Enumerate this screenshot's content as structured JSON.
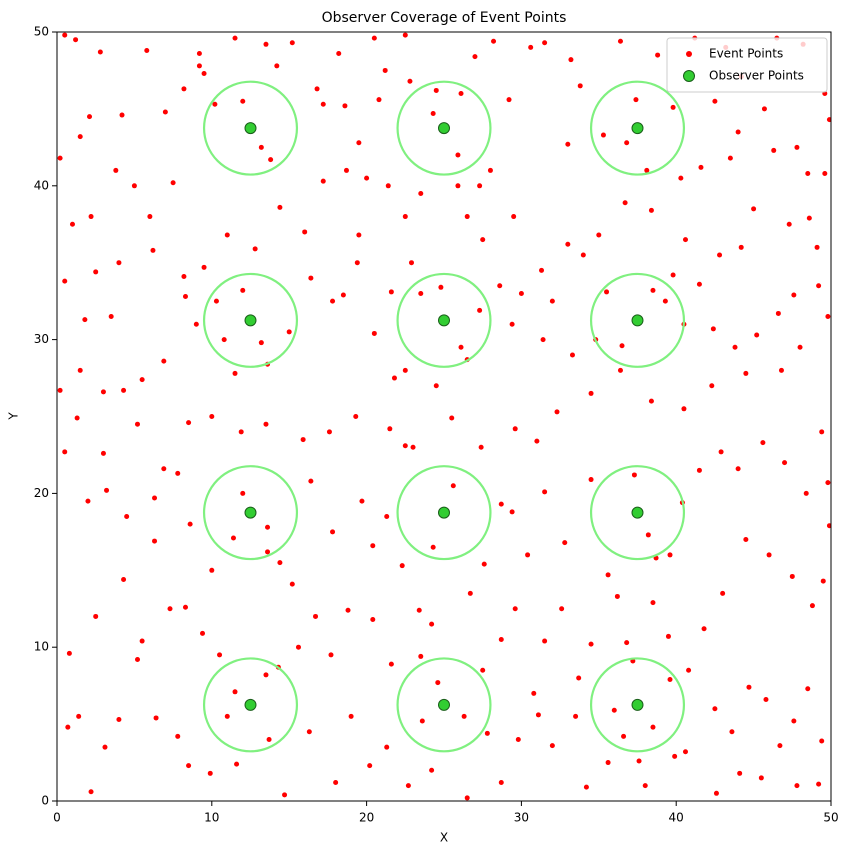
{
  "chart_data": {
    "type": "scatter",
    "title": "Observer Coverage of Event Points",
    "x_label": "X",
    "y_label": "Y",
    "xlim": [
      0,
      50
    ],
    "ylim": [
      0,
      50
    ],
    "xticks": [
      0,
      10,
      20,
      30,
      40,
      50
    ],
    "yticks": [
      0,
      10,
      20,
      30,
      40,
      50
    ],
    "grid": false,
    "legend": "upper right",
    "series": [
      {
        "name": "Event Points",
        "color": "#ff0000",
        "x": [
          0.2,
          0.5,
          1.2,
          2.8,
          4.2,
          2.1,
          1.5,
          5.8,
          7,
          8.2,
          9.2,
          9.5,
          10.2,
          11.5,
          13.5,
          14.2,
          15.2,
          16.8,
          17.2,
          18.2,
          18.6,
          19.5,
          20.5,
          20.8,
          21.2,
          22.5,
          22.8,
          24.5,
          26.1,
          27,
          28.2,
          29.2,
          30.6,
          31.5,
          33.2,
          33.8,
          35.3,
          36.4,
          37.4,
          38.8,
          39.8,
          41.2,
          42.5,
          43.2,
          44.2,
          45.7,
          46.5,
          48.2,
          49.6,
          49.9,
          47.8,
          46.3,
          44,
          43.5,
          41.6,
          40.3,
          48.5,
          49.6,
          45,
          47.3,
          48.6,
          49.1,
          44.2,
          42.8,
          40.6,
          39.8,
          38.4,
          36.7,
          35,
          34,
          33,
          31.3,
          30,
          29.5,
          27.5,
          26.5,
          28,
          25.9,
          23.5,
          22.5,
          21.4,
          20,
          18.7,
          17.2,
          16,
          14.4,
          12.8,
          11,
          9.5,
          8.2,
          7.5,
          6,
          5,
          3.8,
          2.2,
          1,
          0.5,
          2.5,
          4,
          6.2,
          3.5,
          1.8,
          0.2,
          1.5,
          3,
          4.3,
          5.5,
          6.9,
          8.3,
          9,
          10.3,
          11.5,
          13.6,
          15,
          16.4,
          17.8,
          18.5,
          19.4,
          20.5,
          21.6,
          22.9,
          23.5,
          21.8,
          22.5,
          24.5,
          26.5,
          27.3,
          28.6,
          29.4,
          31.4,
          32,
          33.3,
          34.8,
          35.5,
          39.3,
          40.5,
          41.5,
          42.4,
          43.8,
          45.2,
          46.6,
          47.6,
          49.2,
          49.8,
          48,
          46.8,
          44.5,
          42.3,
          40.5,
          38.4,
          36.4,
          34.5,
          32.3,
          31,
          29.6,
          27.4,
          25.5,
          23,
          21.5,
          19.3,
          17.6,
          15.9,
          13.5,
          11.9,
          10,
          8.5,
          6.9,
          5.2,
          3,
          1.3,
          0.5,
          2,
          3.2,
          4.5,
          6.3,
          7.8,
          8.6,
          10,
          11.4,
          13.6,
          14.4,
          15.2,
          16.4,
          17.8,
          19.7,
          20.4,
          21.3,
          22.5,
          22.3,
          23.4,
          24.2,
          26.7,
          27.6,
          28.7,
          29.4,
          30.4,
          31.5,
          32.8,
          34.5,
          35.6,
          36.2,
          38.7,
          39.6,
          40.4,
          41.5,
          42.9,
          44,
          45.6,
          47,
          48.4,
          49.4,
          49.8,
          49.9,
          49.5,
          48.8,
          47.5,
          46,
          44.5,
          43,
          41.8,
          40.8,
          39.6,
          42.5,
          43.6,
          44.7,
          45.8,
          46.7,
          47.6,
          48.5,
          49.4,
          49.2,
          47.8,
          45.5,
          44.1,
          42.6,
          40.6,
          38,
          36.6,
          35.6,
          34.2,
          33.5,
          32,
          31.1,
          30.8,
          29.8,
          28.7,
          27.8,
          26.5,
          24.2,
          22.7,
          21.3,
          20.2,
          19,
          18,
          16.3,
          14.7,
          13.7,
          11.6,
          9.9,
          8.5,
          7.8,
          6.4,
          5.2,
          4,
          3.1,
          2.2,
          1.4,
          0.7,
          0.8,
          2.5,
          4.3,
          5.5,
          6.3,
          7.3,
          8.3,
          9.4,
          10.5,
          11.5,
          14.3,
          15.6,
          16.7,
          17.7,
          18.8,
          20.4,
          21.6,
          23.5,
          24.6,
          27.5,
          28.7,
          29.6,
          31.5,
          32.6,
          33.7,
          34.5,
          36.8,
          38.5,
          39.5,
          13.2,
          12,
          13.8,
          24.3,
          25.9,
          36.8,
          38.1,
          12,
          13.2,
          24.8,
          26.1,
          36.5,
          38.5,
          12,
          13.6,
          24.3,
          25.6,
          37.3,
          38.2,
          11,
          13.5,
          23.6,
          26.3,
          36,
          37.6,
          38.5,
          37.2,
          39.9,
          10.8,
          9.2,
          19.5,
          33,
          27.3
        ],
        "y": [
          41.8,
          49.8,
          49.5,
          48.7,
          44.6,
          44.5,
          43.2,
          48.8,
          44.8,
          46.3,
          48.6,
          47.3,
          45.3,
          49.6,
          49.2,
          47.8,
          49.3,
          46.3,
          45.3,
          48.6,
          45.2,
          42.8,
          49.6,
          45.6,
          47.5,
          49.8,
          46.8,
          46.2,
          46,
          48.4,
          49.4,
          45.6,
          49,
          49.3,
          48.2,
          46.5,
          43.3,
          49.4,
          45.6,
          48.5,
          45.1,
          49.6,
          45.5,
          49,
          47.1,
          45,
          49.6,
          49.2,
          46,
          44.3,
          42.5,
          42.3,
          43.5,
          41.8,
          41.2,
          40.5,
          40.8,
          40.8,
          38.5,
          37.5,
          37.9,
          36,
          36,
          35.5,
          36.5,
          34.2,
          38.4,
          38.9,
          36.8,
          35.5,
          36.2,
          34.5,
          33,
          38,
          36.5,
          38,
          41,
          40,
          39.5,
          38,
          40,
          40.5,
          41,
          40.3,
          37,
          38.6,
          35.9,
          36.8,
          34.7,
          34.1,
          40.2,
          38,
          40,
          41,
          38,
          37.5,
          33.8,
          34.4,
          35,
          35.8,
          31.5,
          31.3,
          26.7,
          28,
          26.6,
          26.7,
          27.4,
          28.6,
          32.8,
          31,
          32.5,
          27.8,
          28.4,
          30.5,
          34,
          32.5,
          32.9,
          35,
          30.4,
          33.1,
          35,
          33,
          27.5,
          28,
          27,
          28.7,
          31.9,
          33.5,
          31,
          30,
          32.5,
          29,
          30,
          33.1,
          32.5,
          31,
          33.6,
          30.7,
          29.5,
          30.3,
          31.7,
          32.9,
          33.5,
          31.5,
          29.5,
          28,
          27.8,
          27,
          25.5,
          26,
          28,
          26.5,
          25.3,
          23.4,
          24.2,
          23,
          24.9,
          23,
          24.2,
          25,
          24,
          23.5,
          24.5,
          24,
          25,
          24.6,
          21.6,
          24.5,
          22.6,
          24.9,
          22.7,
          19.5,
          20.2,
          18.5,
          19.7,
          21.3,
          18,
          15,
          17.1,
          16.2,
          15.5,
          14.1,
          20.8,
          17.5,
          19.5,
          16.6,
          18.5,
          23.1,
          15.3,
          12.4,
          11.5,
          13.5,
          15.4,
          19.3,
          18.8,
          16,
          20.1,
          16.8,
          20.9,
          14.7,
          13.3,
          15.8,
          16,
          19.4,
          21.5,
          22.7,
          21.6,
          23.3,
          22,
          20,
          24,
          20.7,
          17.9,
          14.3,
          12.7,
          14.6,
          16,
          17,
          13.5,
          11.2,
          8.5,
          7.9,
          6,
          4.5,
          7.4,
          6.6,
          3.6,
          5.2,
          7.3,
          3.9,
          1.1,
          1,
          1.5,
          1.8,
          0.5,
          3.2,
          1,
          4.2,
          2.5,
          0.9,
          5.5,
          3.6,
          5.6,
          7,
          4,
          1.2,
          4.4,
          0.2,
          2,
          1,
          3.5,
          2.3,
          5.5,
          1.2,
          4.5,
          0.4,
          4,
          2.4,
          1.8,
          2.3,
          4.2,
          5.4,
          9.2,
          5.3,
          3.5,
          0.6,
          5.5,
          4.8,
          9.6,
          12,
          14.4,
          10.4,
          16.9,
          12.5,
          12.6,
          10.9,
          9.5,
          7.1,
          8.7,
          10,
          12,
          9.5,
          12.4,
          11.8,
          8.9,
          9.4,
          7.7,
          8.5,
          10.5,
          12.5,
          10.4,
          12.5,
          8,
          10.2,
          10.3,
          12.9,
          10.7,
          42.5,
          45.5,
          41.7,
          44.7,
          42,
          42.8,
          41,
          33.2,
          29.8,
          33.4,
          29.5,
          29.6,
          33.2,
          20,
          17.8,
          16.5,
          20.5,
          21.2,
          17.3,
          5.5,
          8.2,
          5.2,
          5.5,
          5.9,
          2.6,
          4.8,
          9.1,
          2.9,
          30,
          47.8,
          36.8,
          42.7,
          40
        ]
      },
      {
        "name": "Observer Points",
        "color": "#32cd32",
        "edgecolor": "#1a5e1a",
        "radius": 3,
        "circle_color": "#80f080",
        "x": [
          12.5,
          12.5,
          12.5,
          12.5,
          25,
          25,
          25,
          25,
          37.5,
          37.5,
          37.5,
          37.5
        ],
        "y": [
          6.25,
          18.75,
          31.25,
          43.75,
          6.25,
          18.75,
          31.25,
          43.75,
          6.25,
          18.75,
          31.25,
          43.75
        ]
      }
    ]
  }
}
